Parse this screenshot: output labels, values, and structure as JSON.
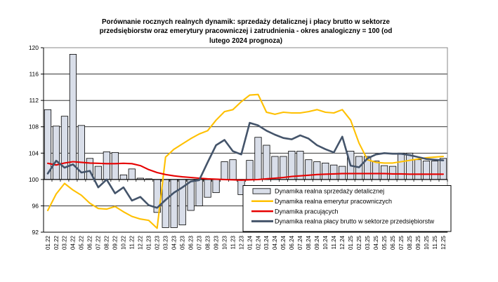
{
  "title": {
    "line1": "Porównanie rocznych realnych dynamik: sprzedaży detalicznej i płacy brutto w sektorze",
    "line2": "przedsiębiorstw oraz emerytury pracowniczej i zatrudnienia - okres analogiczny = 100 (od",
    "line3": "lutego 2024 prognoza)"
  },
  "chart_data": {
    "type": "bar",
    "title": "Porównanie rocznych realnych dynamik: sprzedaży detalicznej i płacy brutto w sektorze przedsiębiorstw oraz emerytury pracowniczej i zatrudnienia - okres analogiczny = 100 (od lutego 2024 prognoza)",
    "categories": [
      "01.22",
      "02.22",
      "03.22",
      "04.22",
      "05.22",
      "06.22",
      "07.22",
      "08.22",
      "09.22",
      "10.22",
      "11.22",
      "12.22",
      "01.23",
      "02.23",
      "03.23",
      "04.23",
      "05.23",
      "06.23",
      "07.23",
      "08.23",
      "09.23",
      "10.23",
      "11.23",
      "12.23",
      "01.24",
      "02.24",
      "03.24",
      "04.24",
      "05.24",
      "06.24",
      "07.24",
      "08.24",
      "09.24",
      "10.24",
      "11.24",
      "12.24",
      "01.25",
      "02.25",
      "03.25",
      "04.25",
      "05.25",
      "06.25",
      "07.25",
      "08.25",
      "09.25",
      "10.25",
      "11.25",
      "12.25"
    ],
    "series": [
      {
        "name": "Dynamika realna sprzedaży detalicznej",
        "type": "bar",
        "color": "#D9DEE9",
        "border_color": "#000000",
        "values": [
          110.6,
          108.1,
          109.6,
          119.0,
          108.2,
          103.2,
          102.0,
          104.2,
          104.1,
          100.7,
          101.6,
          100.2,
          100.1,
          95.0,
          92.7,
          92.7,
          93.1,
          95.3,
          96.0,
          97.3,
          98.0,
          102.7,
          103.0,
          97.7,
          102.9,
          106.4,
          105.2,
          103.5,
          103.5,
          104.3,
          104.3,
          103.0,
          102.7,
          102.5,
          102.2,
          102.0,
          104.3,
          103.5,
          103.5,
          102.8,
          102.1,
          102.0,
          104.0,
          104.0,
          103.0,
          102.8,
          102.8,
          103.2
        ]
      },
      {
        "name": "Dynamika realna emerytur pracowniczych",
        "type": "line",
        "color": "#FFC000",
        "values": [
          95.3,
          97.8,
          99.4,
          98.4,
          97.6,
          96.4,
          95.6,
          95.5,
          95.9,
          95.1,
          94.4,
          94.0,
          93.8,
          92.6,
          103.4,
          104.6,
          105.4,
          106.2,
          106.9,
          107.4,
          109.0,
          110.3,
          110.6,
          111.8,
          112.8,
          112.9,
          110.2,
          109.9,
          110.2,
          110.1,
          110.1,
          110.3,
          110.6,
          110.2,
          110.1,
          110.6,
          109.0,
          105.5,
          103.0,
          102.6,
          102.5,
          102.5,
          102.7,
          102.9,
          103.1,
          103.3,
          103.4,
          103.5
        ]
      },
      {
        "name": "Dynamika pracujących",
        "type": "line",
        "color": "#E60000",
        "values": [
          102.45,
          102.2,
          102.5,
          102.7,
          102.6,
          102.5,
          102.45,
          102.4,
          102.4,
          102.45,
          102.4,
          102.1,
          101.5,
          101.05,
          100.75,
          100.55,
          100.4,
          100.3,
          100.2,
          100.1,
          100.05,
          100.0,
          99.95,
          99.9,
          99.95,
          100.0,
          100.1,
          100.2,
          100.3,
          100.45,
          100.55,
          100.65,
          100.75,
          100.8,
          100.85,
          100.9,
          100.9,
          100.9,
          100.9,
          100.9,
          100.9,
          100.85,
          100.85,
          100.8,
          100.8,
          100.8,
          100.8,
          100.8
        ]
      },
      {
        "name": "Dynamika realna płacy brutto w sektorze przedsiębiorstw",
        "type": "line",
        "color": "#44546A",
        "values": [
          100.9,
          102.85,
          101.8,
          102.3,
          101.05,
          101.3,
          98.8,
          100.0,
          97.9,
          98.8,
          96.8,
          97.35,
          96.1,
          95.7,
          96.9,
          98.0,
          98.8,
          99.7,
          99.9,
          102.6,
          105.2,
          106.0,
          104.3,
          103.8,
          108.6,
          108.2,
          107.4,
          106.8,
          106.3,
          106.1,
          106.7,
          106.2,
          105.2,
          104.6,
          104.1,
          106.5,
          102.1,
          101.85,
          103.2,
          103.8,
          104.0,
          103.9,
          103.9,
          103.7,
          103.4,
          103.1,
          103.0,
          102.9
        ]
      }
    ],
    "ylim": [
      92,
      120
    ],
    "yticks": [
      92,
      96,
      100,
      104,
      108,
      112,
      116,
      120
    ],
    "baseline": 100,
    "grid": true,
    "legend_position": "inside-bottom-right",
    "colors": {
      "grid_line": "#1a1a1a",
      "plot_border": "#898989",
      "axis_line": "#000000"
    }
  }
}
